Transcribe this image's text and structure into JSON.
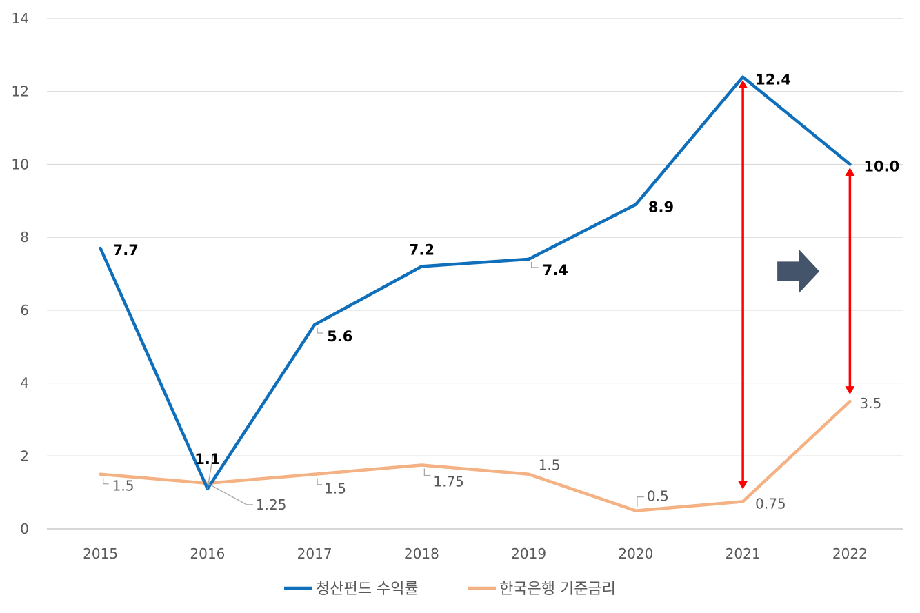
{
  "chart_data": {
    "type": "line",
    "title": "",
    "xlabel": "",
    "ylabel": "",
    "ylim": [
      0,
      14
    ],
    "yticks": [
      0,
      2,
      4,
      6,
      8,
      10,
      12,
      14
    ],
    "grid": true,
    "legend_position": "bottom-center",
    "categories": [
      "2015",
      "2016",
      "2017",
      "2018",
      "2019",
      "2020",
      "2021",
      "2022"
    ],
    "series": [
      {
        "name": "청산펀드 수익률",
        "color": "#0f6fba",
        "values": [
          7.7,
          1.1,
          5.6,
          7.2,
          7.4,
          8.9,
          12.4,
          10.0
        ],
        "labels": [
          "7.7",
          "1.1",
          "5.6",
          "7.2",
          "7.4",
          "8.9",
          "12.4",
          "10.0"
        ]
      },
      {
        "name": "한국은행 기준금리",
        "color": "#f4b183",
        "values": [
          1.5,
          1.25,
          1.5,
          1.75,
          1.5,
          0.5,
          0.75,
          3.5
        ],
        "labels": [
          "1.5",
          "1.25",
          "1.5",
          "1.75",
          "1.5",
          "0.5",
          "0.75",
          "3.5"
        ]
      }
    ],
    "annotations": {
      "gap_arrows": [
        {
          "category": "2021",
          "from": 1.2,
          "to": 12.2,
          "color": "#ff0000"
        },
        {
          "category": "2022",
          "from": 3.8,
          "to": 9.8,
          "color": "#ff0000"
        }
      ],
      "arrow_shape": {
        "color": "#44546a",
        "direction": "right",
        "near_category": "2021",
        "value": 7.2
      }
    }
  }
}
